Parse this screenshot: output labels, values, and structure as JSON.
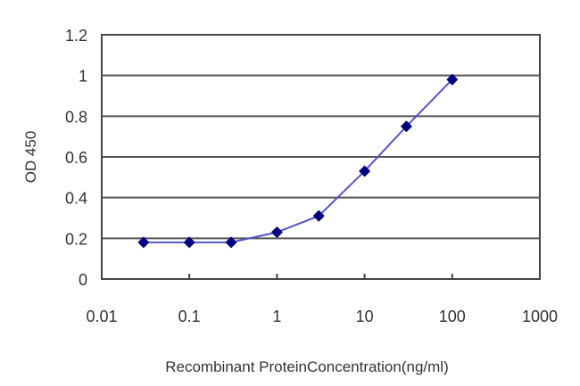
{
  "chart_data": {
    "type": "line",
    "title": "",
    "xlabel": "Recombinant ProteinConcentration(ng/ml)",
    "ylabel": "OD 450",
    "xscale": "log",
    "xlim": [
      0.01,
      1000
    ],
    "ylim": [
      0,
      1.2
    ],
    "x_ticks": [
      "0.01",
      "0.1",
      "1",
      "10",
      "100",
      "1000"
    ],
    "y_ticks": [
      "0",
      "0.2",
      "0.4",
      "0.6",
      "0.8",
      "1",
      "1.2"
    ],
    "grid": "horizontal",
    "legend": "none",
    "series": [
      {
        "name": "OD 450",
        "color": "#000080",
        "line_color": "#5555c8",
        "x": [
          0.03,
          0.1,
          0.3,
          1,
          3,
          10,
          30,
          100
        ],
        "values": [
          0.18,
          0.18,
          0.18,
          0.23,
          0.31,
          0.53,
          0.75,
          0.98
        ]
      }
    ]
  },
  "colors": {
    "grid": "#555555",
    "frame": "#444444",
    "marker": "#000080",
    "line": "#5555c8"
  }
}
